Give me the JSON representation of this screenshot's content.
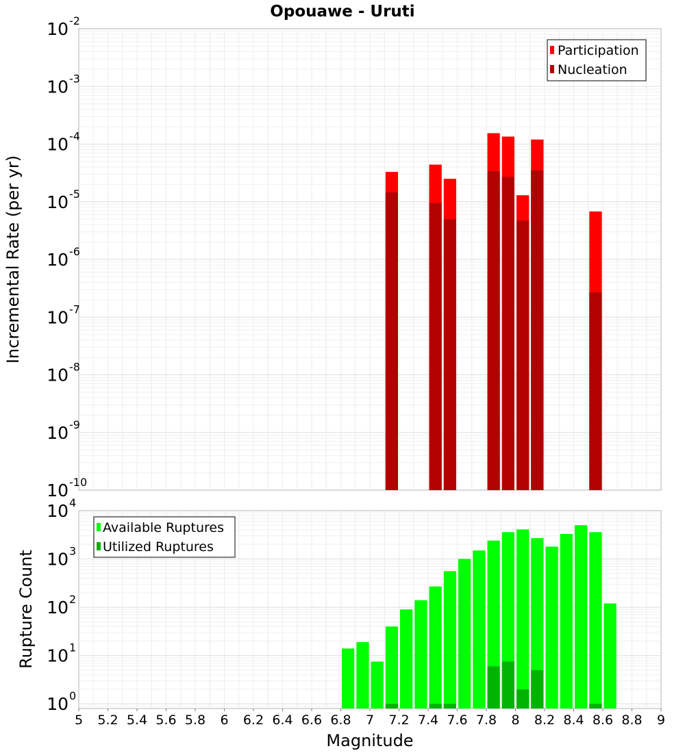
{
  "title": "Opouawe - Uruti",
  "colors": {
    "participation": "#ff0000",
    "nucleation": "#b30000",
    "available": "#00ff00",
    "utilized": "#00b300"
  },
  "chart_data": [
    {
      "type": "bar",
      "title": "Opouawe - Uruti",
      "xlabel": "Magnitude",
      "ylabel": "Incremental Rate (per yr)",
      "yscale": "log",
      "xlim": [
        5,
        9
      ],
      "ylim": [
        1e-10,
        0.01
      ],
      "ytick_exponents": [
        -10,
        -9,
        -8,
        -7,
        -6,
        -5,
        -4,
        -3,
        -2
      ],
      "grid": true,
      "legend": {
        "position": "top-right",
        "entries": [
          "Participation",
          "Nucleation"
        ]
      },
      "bin_width": 0.1,
      "series": [
        {
          "name": "Participation",
          "color": "#ff0000",
          "x": [
            7.15,
            7.45,
            7.55,
            7.85,
            7.95,
            8.05,
            8.15,
            8.55
          ],
          "values": [
            3.3e-05,
            4.4e-05,
            2.5e-05,
            0.000155,
            0.000135,
            1.3e-05,
            0.00012,
            6.8e-06
          ]
        },
        {
          "name": "Nucleation",
          "color": "#b30000",
          "x": [
            7.15,
            7.45,
            7.55,
            7.85,
            7.95,
            8.05,
            8.15,
            8.55
          ],
          "values": [
            1.45e-05,
            9.5e-06,
            5e-06,
            3.4e-05,
            2.7e-05,
            4.7e-06,
            3.5e-05,
            2.7e-07
          ]
        }
      ]
    },
    {
      "type": "bar",
      "xlabel": "Magnitude",
      "ylabel": "Rupture Count",
      "yscale": "log",
      "xlim": [
        5,
        9
      ],
      "ylim": [
        0.8,
        10000
      ],
      "ytick_exponents": [
        0,
        1,
        2,
        3,
        4
      ],
      "xticks": [
        "5",
        "5.2",
        "5.4",
        "5.6",
        "5.8",
        "6",
        "6.2",
        "6.4",
        "6.6",
        "6.8",
        "7",
        "7.2",
        "7.4",
        "7.6",
        "7.8",
        "8",
        "8.2",
        "8.4",
        "8.6",
        "8.8",
        "9"
      ],
      "grid": true,
      "legend": {
        "position": "top-left",
        "entries": [
          "Available Ruptures",
          "Utilized Ruptures"
        ]
      },
      "bin_width": 0.1,
      "series": [
        {
          "name": "Available Ruptures",
          "color": "#00ff00",
          "x": [
            6.85,
            6.95,
            7.05,
            7.15,
            7.25,
            7.35,
            7.45,
            7.55,
            7.65,
            7.75,
            7.85,
            7.95,
            8.05,
            8.15,
            8.25,
            8.35,
            8.45,
            8.55,
            8.65
          ],
          "values": [
            14,
            19,
            7.5,
            40,
            90,
            140,
            270,
            560,
            1000,
            1500,
            2400,
            3600,
            4100,
            2700,
            1800,
            3300,
            5000,
            3600,
            120
          ]
        },
        {
          "name": "Utilized Ruptures",
          "color": "#00b300",
          "x": [
            7.15,
            7.45,
            7.55,
            7.85,
            7.95,
            8.05,
            8.15,
            8.55
          ],
          "values": [
            1,
            1,
            1,
            6,
            7.5,
            2,
            5,
            1
          ]
        }
      ]
    }
  ]
}
